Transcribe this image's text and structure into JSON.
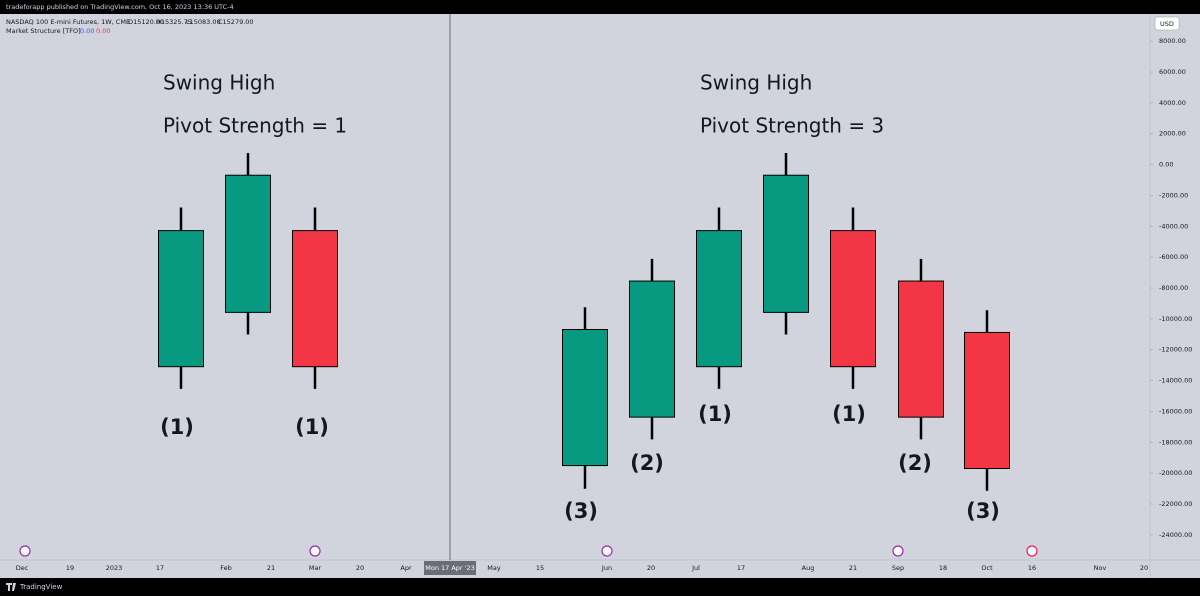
{
  "header": {
    "published": "tradeforapp published on TradingView.com, Oct 16, 2023 13:36 UTC-4"
  },
  "chart_data": {
    "type": "candlestick",
    "symbol": "NASDAQ 100 E-mini Futures, 1W, CME",
    "ohlc_legend": [
      "O15120.00",
      "H15325.75",
      "L15083.00",
      "C15279.00"
    ],
    "indicator": {
      "name": "Market Structure [TFO]",
      "values": [
        "0.00",
        "0.00"
      ],
      "colors": [
        "#2962ff",
        "#f23645"
      ]
    },
    "currency": "USD",
    "up_color": "#089981",
    "down_color": "#f23645",
    "candles": [
      {
        "open": -13100,
        "high": -2780,
        "low": -14540,
        "close": -4280
      },
      {
        "open": -9580,
        "high": 750,
        "low": -11010,
        "close": -690
      },
      {
        "open": -4280,
        "high": -2780,
        "low": -14540,
        "close": -13100
      },
      {
        "open": -19510,
        "high": -9250,
        "low": -21010,
        "close": -10690
      },
      {
        "open": -16370,
        "high": -6110,
        "low": -17810,
        "close": -7550
      },
      {
        "open": -13100,
        "high": -2780,
        "low": -14540,
        "close": -4280
      },
      {
        "open": -9580,
        "high": 750,
        "low": -11010,
        "close": -690
      },
      {
        "open": -4280,
        "high": -2780,
        "low": -14540,
        "close": -13100
      },
      {
        "open": -7550,
        "high": -6110,
        "low": -17810,
        "close": -16370
      },
      {
        "open": -10880,
        "high": -9440,
        "low": -21140,
        "close": -19700
      }
    ],
    "ylim": [
      -25630,
      9760
    ],
    "yticks": [
      {
        "value": 8000,
        "label": "8000.00"
      },
      {
        "value": 6000,
        "label": "6000.00"
      },
      {
        "value": 4000,
        "label": "4000.00"
      },
      {
        "value": 2000,
        "label": "2000.00"
      },
      {
        "value": 0,
        "label": "0.00"
      },
      {
        "value": -2000,
        "label": "-2000.00"
      },
      {
        "value": -4000,
        "label": "-4000.00"
      },
      {
        "value": -6000,
        "label": "-6000.00"
      },
      {
        "value": -8000,
        "label": "-8000.00"
      },
      {
        "value": -10000,
        "label": "-10000.00"
      },
      {
        "value": -12000,
        "label": "-12000.00"
      },
      {
        "value": -14000,
        "label": "-14000.00"
      },
      {
        "value": -16000,
        "label": "-16000.00"
      },
      {
        "value": -18000,
        "label": "-18000.00"
      },
      {
        "value": -20000,
        "label": "-20000.00"
      },
      {
        "value": -22000,
        "label": "-22000.00"
      },
      {
        "value": -24000,
        "label": "-24000.00"
      }
    ],
    "x_axis_labels": [
      "Dec",
      "19",
      "2023",
      "17",
      "Feb",
      "21",
      "Mar",
      "20",
      "Apr",
      "May",
      "15",
      "Jun",
      "20",
      "Jul",
      "17",
      "Aug",
      "21",
      "Sep",
      "18",
      "Oct",
      "16",
      "Nov",
      "20"
    ],
    "crosshair_label": "Mon 17 Apr '23",
    "annotations": [
      "Swing High",
      "Pivot Strength = 1",
      "Swing High",
      "Pivot Strength = 3"
    ],
    "candle_labels": [
      "(1)",
      "(1)",
      "(3)",
      "(2)",
      "(1)",
      "(1)",
      "(2)",
      "(3)"
    ]
  },
  "footer": {
    "brand": "TradingView"
  }
}
